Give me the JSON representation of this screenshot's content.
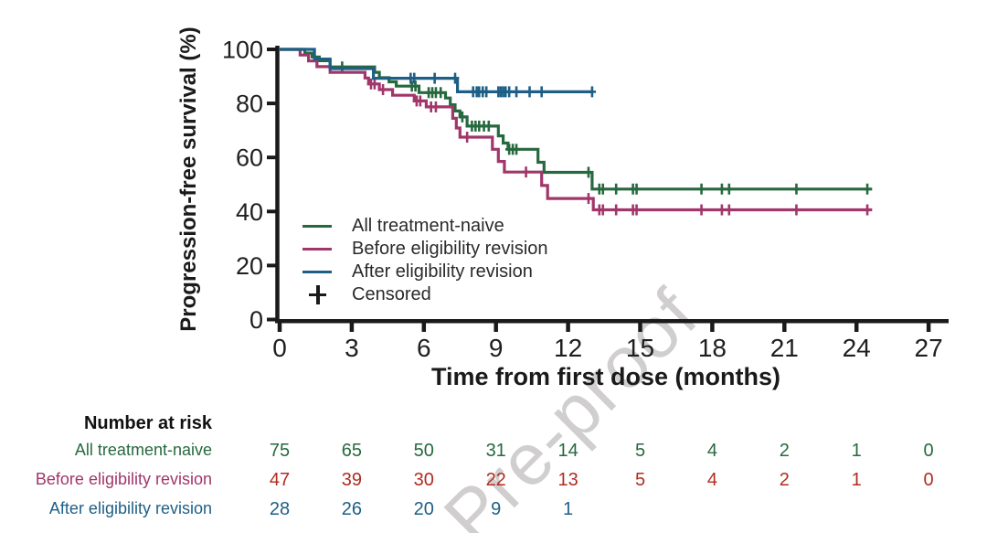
{
  "figure": {
    "watermark_text": "Pre-proof",
    "legend": [
      {
        "label": "All treatment-naive",
        "color": "#27693f",
        "marker": "line"
      },
      {
        "label": "Before eligibility revision",
        "color": "#a1366b",
        "marker": "line"
      },
      {
        "label": "After eligibility revision",
        "color": "#1e5f86",
        "marker": "line"
      },
      {
        "label": "Censored",
        "color": "#1a1a1a",
        "marker": "plus"
      }
    ]
  },
  "chart_data": {
    "type": "line",
    "subtype": "kaplan-meier-step",
    "title": "",
    "xlabel": "Time from first dose (months)",
    "ylabel": "Progression-free survival (%)",
    "x_ticks": [
      0,
      3,
      6,
      9,
      12,
      15,
      18,
      21,
      24,
      27
    ],
    "y_ticks": [
      0,
      20,
      40,
      60,
      80,
      100
    ],
    "xlim": [
      0,
      28
    ],
    "ylim": [
      0,
      100
    ],
    "grid": false,
    "legend_position": "inside lower-left",
    "series": [
      {
        "name": "All treatment-naive",
        "color": "#27693f",
        "end": 24.65,
        "steps": [
          [
            0,
            100
          ],
          [
            1.05,
            98.6
          ],
          [
            1.35,
            97.2
          ],
          [
            1.65,
            95.8
          ],
          [
            2.1,
            93.5
          ],
          [
            3.95,
            91.5
          ],
          [
            4.15,
            89.5
          ],
          [
            4.55,
            88
          ],
          [
            4.85,
            86.4
          ],
          [
            5.8,
            84
          ],
          [
            6.9,
            82
          ],
          [
            7.1,
            79.5
          ],
          [
            7.3,
            77.2
          ],
          [
            7.5,
            75
          ],
          [
            7.8,
            71.6
          ],
          [
            9.1,
            68
          ],
          [
            9.3,
            65.3
          ],
          [
            9.5,
            63
          ],
          [
            10.75,
            58.2
          ],
          [
            11,
            54.5
          ],
          [
            13,
            48.3
          ]
        ],
        "censored": [
          [
            2.6,
            93.5
          ],
          [
            5.5,
            86.4
          ],
          [
            5.65,
            86.4
          ],
          [
            6.2,
            84
          ],
          [
            6.35,
            84
          ],
          [
            6.5,
            84
          ],
          [
            6.7,
            84
          ],
          [
            7.6,
            75
          ],
          [
            8,
            71.6
          ],
          [
            8.15,
            71.6
          ],
          [
            8.3,
            71.6
          ],
          [
            8.5,
            71.6
          ],
          [
            8.7,
            71.6
          ],
          [
            9.55,
            63
          ],
          [
            9.7,
            63
          ],
          [
            9.85,
            63
          ],
          [
            12.85,
            54.5
          ],
          [
            13.3,
            48.3
          ],
          [
            13.45,
            48.3
          ],
          [
            14,
            48.3
          ],
          [
            14.7,
            48.3
          ],
          [
            14.85,
            48.3
          ],
          [
            17.55,
            48.3
          ],
          [
            18.4,
            48.3
          ],
          [
            18.7,
            48.3
          ],
          [
            21.5,
            48.3
          ],
          [
            24.45,
            48.3
          ]
        ]
      },
      {
        "name": "Before eligibility revision",
        "color": "#a1366b",
        "end": 24.65,
        "steps": [
          [
            0,
            100
          ],
          [
            0.85,
            97.9
          ],
          [
            1.2,
            95.7
          ],
          [
            1.55,
            93.6
          ],
          [
            2.1,
            91.5
          ],
          [
            3.55,
            89.4
          ],
          [
            3.7,
            87.2
          ],
          [
            4.15,
            85.1
          ],
          [
            4.7,
            83
          ],
          [
            5.6,
            80.9
          ],
          [
            6.1,
            78.7
          ],
          [
            7.2,
            74.5
          ],
          [
            7.35,
            70.9
          ],
          [
            7.5,
            67.5
          ],
          [
            8.85,
            63
          ],
          [
            9.1,
            58.5
          ],
          [
            9.35,
            54.6
          ],
          [
            10.9,
            49.6
          ],
          [
            11.15,
            44.8
          ],
          [
            13.05,
            40.6
          ]
        ],
        "censored": [
          [
            3.8,
            87.2
          ],
          [
            3.95,
            87.2
          ],
          [
            4.3,
            85.1
          ],
          [
            5.7,
            80.9
          ],
          [
            5.85,
            80.9
          ],
          [
            6.3,
            78.7
          ],
          [
            6.5,
            78.7
          ],
          [
            7.8,
            67.5
          ],
          [
            10.25,
            54.6
          ],
          [
            12.85,
            44.8
          ],
          [
            13.3,
            40.6
          ],
          [
            13.45,
            40.6
          ],
          [
            14,
            40.6
          ],
          [
            14.7,
            40.6
          ],
          [
            14.85,
            40.6
          ],
          [
            17.55,
            40.6
          ],
          [
            18.4,
            40.6
          ],
          [
            18.7,
            40.6
          ],
          [
            21.5,
            40.6
          ],
          [
            24.45,
            40.6
          ]
        ]
      },
      {
        "name": "After eligibility revision",
        "color": "#1e5f86",
        "end": 13.05,
        "steps": [
          [
            0,
            100
          ],
          [
            1.45,
            96.4
          ],
          [
            2.1,
            92.9
          ],
          [
            3.9,
            89.3
          ],
          [
            7.4,
            84.3
          ]
        ],
        "censored": [
          [
            5.45,
            89.3
          ],
          [
            5.6,
            89.3
          ],
          [
            6.45,
            89.3
          ],
          [
            7.3,
            89.3
          ],
          [
            8.05,
            84.3
          ],
          [
            8.2,
            84.3
          ],
          [
            8.3,
            84.3
          ],
          [
            8.45,
            84.3
          ],
          [
            8.6,
            84.3
          ],
          [
            9.1,
            84.3
          ],
          [
            9.2,
            84.3
          ],
          [
            9.3,
            84.3
          ],
          [
            9.4,
            84.3
          ],
          [
            9.55,
            84.3
          ],
          [
            9.85,
            84.3
          ],
          [
            10.4,
            84.3
          ],
          [
            10.9,
            84.3
          ],
          [
            13,
            84.3
          ]
        ]
      }
    ]
  },
  "risk_table": {
    "title": "Number at risk",
    "time_points": [
      0,
      3,
      6,
      9,
      12,
      15,
      18,
      21,
      24,
      27
    ],
    "rows": [
      {
        "label": "All treatment-naive",
        "label_color": "#27693f",
        "value_color": "#27693f",
        "values": [
          "75",
          "65",
          "50",
          "31",
          "14",
          "5",
          "4",
          "2",
          "1",
          "0"
        ]
      },
      {
        "label": "Before eligibility revision",
        "label_color": "#a1366b",
        "value_color": "#b02c20",
        "values": [
          "47",
          "39",
          "30",
          "22",
          "13",
          "5",
          "4",
          "2",
          "1",
          "0"
        ]
      },
      {
        "label": "After eligibility revision",
        "label_color": "#1e5f86",
        "value_color": "#1e5f86",
        "values": [
          "28",
          "26",
          "20",
          "9",
          "1",
          "",
          "",
          "",
          "",
          ""
        ]
      }
    ]
  }
}
